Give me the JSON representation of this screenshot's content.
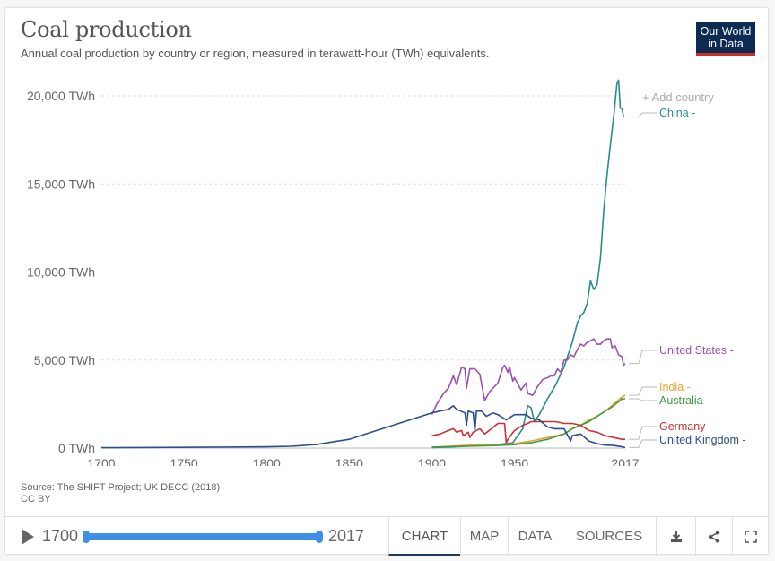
{
  "header": {
    "title": "Coal production",
    "subtitle": "Annual coal production by country or region, measured in terawatt-hour (TWh) equivalents.",
    "logo_line1": "Our World",
    "logo_line2": "in Data"
  },
  "add_country_label": "+ Add country",
  "source": "Source: The SHIFT Project; UK DECC (2018)",
  "license": "CC BY",
  "timeline": {
    "start_year": "1700",
    "end_year": "2017",
    "play_icon": "play-icon"
  },
  "tabs": [
    {
      "label": "CHART",
      "active": true
    },
    {
      "label": "MAP",
      "active": false
    },
    {
      "label": "DATA",
      "active": false
    },
    {
      "label": "SOURCES",
      "active": false
    }
  ],
  "actions": [
    {
      "icon": "download-icon"
    },
    {
      "icon": "share-icon"
    },
    {
      "icon": "fullscreen-icon"
    }
  ],
  "chart_data": {
    "type": "line",
    "title": "Coal production",
    "subtitle": "Annual coal production by country or region, measured in terawatt-hour (TWh) equivalents.",
    "xlabel": "",
    "ylabel": "",
    "xlim": [
      1700,
      2017
    ],
    "ylim": [
      0,
      20000
    ],
    "x_ticks": [
      "1700",
      "1750",
      "1800",
      "1850",
      "1900",
      "1950",
      "2017"
    ],
    "x_tick_values": [
      1700,
      1750,
      1800,
      1850,
      1900,
      1950,
      2017
    ],
    "y_ticks": [
      "0 TWh",
      "5,000 TWh",
      "10,000 TWh",
      "15,000 TWh",
      "20,000 TWh"
    ],
    "y_tick_values": [
      0,
      5000,
      10000,
      15000,
      20000
    ],
    "grid": true,
    "legend": "right (line end labels)",
    "series": [
      {
        "name": "China",
        "label": "China -",
        "color": "#2a8c8c",
        "points": [
          [
            1900,
            20
          ],
          [
            1920,
            100
          ],
          [
            1940,
            200
          ],
          [
            1949,
            300
          ],
          [
            1955,
            1100
          ],
          [
            1958,
            2400
          ],
          [
            1960,
            2300
          ],
          [
            1962,
            1500
          ],
          [
            1965,
            1900
          ],
          [
            1970,
            2800
          ],
          [
            1975,
            3600
          ],
          [
            1980,
            4600
          ],
          [
            1985,
            6000
          ],
          [
            1988,
            7100
          ],
          [
            1990,
            7500
          ],
          [
            1992,
            7700
          ],
          [
            1994,
            8200
          ],
          [
            1996,
            9500
          ],
          [
            1998,
            9000
          ],
          [
            2000,
            9300
          ],
          [
            2002,
            10800
          ],
          [
            2004,
            13500
          ],
          [
            2006,
            15500
          ],
          [
            2008,
            17200
          ],
          [
            2010,
            18800
          ],
          [
            2012,
            20700
          ],
          [
            2013,
            20900
          ],
          [
            2014,
            19300
          ],
          [
            2015,
            19300
          ],
          [
            2016,
            18800
          ]
        ]
      },
      {
        "name": "United States",
        "label": "United States -",
        "color": "#9b4fb5",
        "points": [
          [
            1900,
            1900
          ],
          [
            1903,
            2500
          ],
          [
            1907,
            3100
          ],
          [
            1910,
            3400
          ],
          [
            1913,
            4100
          ],
          [
            1915,
            3600
          ],
          [
            1918,
            4600
          ],
          [
            1920,
            4500
          ],
          [
            1921,
            3400
          ],
          [
            1923,
            4500
          ],
          [
            1926,
            4500
          ],
          [
            1929,
            4200
          ],
          [
            1932,
            2700
          ],
          [
            1935,
            3200
          ],
          [
            1940,
            3700
          ],
          [
            1943,
            4600
          ],
          [
            1944,
            4700
          ],
          [
            1946,
            4300
          ],
          [
            1947,
            4600
          ],
          [
            1949,
            3800
          ],
          [
            1950,
            4000
          ],
          [
            1954,
            3300
          ],
          [
            1957,
            3700
          ],
          [
            1958,
            3100
          ],
          [
            1961,
            3000
          ],
          [
            1964,
            3500
          ],
          [
            1967,
            3900
          ],
          [
            1970,
            4000
          ],
          [
            1972,
            4100
          ],
          [
            1974,
            4100
          ],
          [
            1976,
            4500
          ],
          [
            1978,
            4300
          ],
          [
            1980,
            5000
          ],
          [
            1982,
            5000
          ],
          [
            1984,
            5300
          ],
          [
            1986,
            5200
          ],
          [
            1988,
            5600
          ],
          [
            1990,
            5900
          ],
          [
            1992,
            5800
          ],
          [
            1994,
            6000
          ],
          [
            1996,
            6100
          ],
          [
            1998,
            6200
          ],
          [
            2000,
            5900
          ],
          [
            2002,
            5900
          ],
          [
            2004,
            6100
          ],
          [
            2006,
            6200
          ],
          [
            2008,
            6200
          ],
          [
            2009,
            5700
          ],
          [
            2011,
            5800
          ],
          [
            2013,
            5300
          ],
          [
            2015,
            5200
          ],
          [
            2016,
            4700
          ],
          [
            2017,
            4800
          ]
        ]
      },
      {
        "name": "India",
        "label": "India -",
        "color": "#e8a532",
        "points": [
          [
            1900,
            50
          ],
          [
            1920,
            150
          ],
          [
            1940,
            200
          ],
          [
            1950,
            250
          ],
          [
            1960,
            400
          ],
          [
            1970,
            600
          ],
          [
            1980,
            800
          ],
          [
            1985,
            1100
          ],
          [
            1990,
            1300
          ],
          [
            1995,
            1600
          ],
          [
            2000,
            1800
          ],
          [
            2005,
            2100
          ],
          [
            2010,
            2500
          ],
          [
            2015,
            2900
          ],
          [
            2017,
            3000
          ]
        ]
      },
      {
        "name": "Australia",
        "label": "Australia -",
        "color": "#3c9b3c",
        "points": [
          [
            1900,
            50
          ],
          [
            1920,
            100
          ],
          [
            1940,
            150
          ],
          [
            1950,
            200
          ],
          [
            1960,
            300
          ],
          [
            1970,
            500
          ],
          [
            1980,
            800
          ],
          [
            1985,
            1100
          ],
          [
            1990,
            1300
          ],
          [
            1995,
            1500
          ],
          [
            2000,
            1800
          ],
          [
            2005,
            2100
          ],
          [
            2010,
            2400
          ],
          [
            2015,
            2800
          ],
          [
            2017,
            2800
          ]
        ]
      },
      {
        "name": "Germany",
        "label": "Germany -",
        "color": "#c83232",
        "points": [
          [
            1900,
            700
          ],
          [
            1905,
            800
          ],
          [
            1910,
            1000
          ],
          [
            1913,
            1100
          ],
          [
            1915,
            900
          ],
          [
            1918,
            1000
          ],
          [
            1919,
            700
          ],
          [
            1922,
            900
          ],
          [
            1923,
            600
          ],
          [
            1925,
            900
          ],
          [
            1929,
            1100
          ],
          [
            1932,
            800
          ],
          [
            1936,
            1100
          ],
          [
            1940,
            1400
          ],
          [
            1944,
            1400
          ],
          [
            1945,
            300
          ],
          [
            1946,
            500
          ],
          [
            1950,
            1000
          ],
          [
            1955,
            1300
          ],
          [
            1958,
            1400
          ],
          [
            1960,
            1500
          ],
          [
            1965,
            1500
          ],
          [
            1970,
            1500
          ],
          [
            1975,
            1500
          ],
          [
            1980,
            1400
          ],
          [
            1985,
            1400
          ],
          [
            1990,
            1300
          ],
          [
            1995,
            1000
          ],
          [
            2000,
            900
          ],
          [
            2005,
            700
          ],
          [
            2010,
            600
          ],
          [
            2015,
            500
          ],
          [
            2017,
            500
          ]
        ]
      },
      {
        "name": "United Kingdom",
        "label": "United Kingdom -",
        "color": "#2b4f8c",
        "points": [
          [
            1700,
            20
          ],
          [
            1750,
            40
          ],
          [
            1800,
            70
          ],
          [
            1815,
            100
          ],
          [
            1830,
            200
          ],
          [
            1850,
            500
          ],
          [
            1860,
            800
          ],
          [
            1870,
            1100
          ],
          [
            1880,
            1400
          ],
          [
            1890,
            1700
          ],
          [
            1900,
            2000
          ],
          [
            1905,
            2100
          ],
          [
            1910,
            2200
          ],
          [
            1913,
            2400
          ],
          [
            1915,
            2200
          ],
          [
            1920,
            2000
          ],
          [
            1921,
            1300
          ],
          [
            1922,
            2100
          ],
          [
            1925,
            2000
          ],
          [
            1926,
            1000
          ],
          [
            1927,
            2100
          ],
          [
            1930,
            2100
          ],
          [
            1933,
            1800
          ],
          [
            1937,
            2000
          ],
          [
            1940,
            1900
          ],
          [
            1945,
            1600
          ],
          [
            1950,
            1900
          ],
          [
            1955,
            1900
          ],
          [
            1957,
            1900
          ],
          [
            1960,
            1700
          ],
          [
            1965,
            1600
          ],
          [
            1970,
            1200
          ],
          [
            1974,
            1100
          ],
          [
            1975,
            1100
          ],
          [
            1980,
            1100
          ],
          [
            1984,
            400
          ],
          [
            1985,
            700
          ],
          [
            1990,
            800
          ],
          [
            1995,
            400
          ],
          [
            2000,
            250
          ],
          [
            2005,
            170
          ],
          [
            2010,
            150
          ],
          [
            2015,
            70
          ],
          [
            2017,
            30
          ]
        ]
      }
    ]
  }
}
